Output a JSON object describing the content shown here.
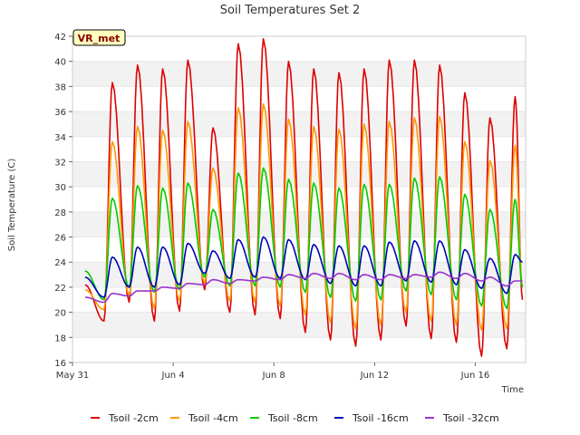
{
  "chart_data": {
    "type": "line",
    "title": "Soil Temperatures Set 2",
    "xlabel": "Time",
    "ylabel": "Soil Temperature (C)",
    "badge": "VR_met",
    "ylim": [
      16,
      42
    ],
    "yticks": [
      16,
      18,
      20,
      22,
      24,
      26,
      28,
      30,
      32,
      34,
      36,
      38,
      40,
      42
    ],
    "xlim": [
      "May 31",
      "Jun 18"
    ],
    "xticks": [
      "May 31",
      "Jun 4",
      "Jun 8",
      "Jun 12",
      "Jun 16"
    ],
    "grid": "horizontal bands",
    "legend_position": "bottom",
    "days": [
      "Jun 1",
      "Jun 2",
      "Jun 3",
      "Jun 4",
      "Jun 5",
      "Jun 6",
      "Jun 7",
      "Jun 8",
      "Jun 9",
      "Jun 10",
      "Jun 11",
      "Jun 12",
      "Jun 13",
      "Jun 14",
      "Jun 15",
      "Jun 16",
      "Jun 17"
    ],
    "series": [
      {
        "name": "Tsoil -2cm",
        "color": "#dd0000",
        "start": "May 31 12:00",
        "end": "Jun 17 21:00",
        "start_value": 22.2,
        "end_value": 21.0,
        "daily_max": [
          38.3,
          39.7,
          39.4,
          40.1,
          34.7,
          41.4,
          41.8,
          40.0,
          39.4,
          39.1,
          39.4,
          40.1,
          40.1,
          39.7,
          37.5,
          35.5,
          37.2
        ],
        "daily_min": [
          19.3,
          20.8,
          19.3,
          20.1,
          21.8,
          20.0,
          19.8,
          19.5,
          18.4,
          17.8,
          17.3,
          17.8,
          18.9,
          17.9,
          17.6,
          16.5,
          17.1
        ]
      },
      {
        "name": "Tsoil -4cm",
        "color": "#ff9900",
        "start": "May 31 12:00",
        "end": "Jun 17 21:00",
        "start_value": 21.8,
        "end_value": 22.0,
        "daily_max": [
          33.6,
          34.8,
          34.5,
          35.2,
          31.5,
          36.3,
          36.6,
          35.4,
          34.8,
          34.6,
          35.0,
          35.2,
          35.5,
          35.6,
          33.6,
          32.1,
          33.3
        ],
        "daily_min": [
          20.2,
          21.3,
          20.3,
          20.9,
          22.3,
          20.9,
          20.8,
          20.5,
          19.8,
          19.2,
          18.7,
          19.0,
          20.0,
          19.3,
          19.0,
          18.6,
          18.7
        ]
      },
      {
        "name": "Tsoil -8cm",
        "color": "#00cc00",
        "start": "May 31 12:00",
        "end": "Jun 17 21:00",
        "start_value": 23.3,
        "end_value": 22.0,
        "daily_max": [
          29.1,
          30.1,
          29.9,
          30.3,
          28.2,
          31.1,
          31.5,
          30.6,
          30.3,
          29.9,
          30.2,
          30.2,
          30.7,
          30.8,
          29.4,
          28.2,
          29.0
        ],
        "daily_min": [
          21.0,
          22.0,
          21.6,
          21.8,
          22.8,
          22.1,
          22.1,
          22.0,
          21.6,
          21.2,
          20.9,
          21.0,
          21.7,
          21.4,
          21.0,
          20.5,
          20.3
        ]
      },
      {
        "name": "Tsoil -16cm",
        "color": "#0000bb",
        "start": "May 31 12:00",
        "end": "Jun 17 21:00",
        "start_value": 22.8,
        "end_value": 24.0,
        "daily_max": [
          24.4,
          25.2,
          25.2,
          25.5,
          24.9,
          25.8,
          26.0,
          25.8,
          25.4,
          25.3,
          25.3,
          25.6,
          25.7,
          25.7,
          25.0,
          24.3,
          24.6
        ],
        "daily_min": [
          21.2,
          22.0,
          22.0,
          22.2,
          23.1,
          22.7,
          22.8,
          22.7,
          22.6,
          22.3,
          22.1,
          22.1,
          22.5,
          22.4,
          22.2,
          21.9,
          21.5
        ]
      },
      {
        "name": "Tsoil -32cm",
        "color": "#9933cc",
        "start": "May 31 12:00",
        "end": "Jun 17 21:00",
        "start_value": 21.2,
        "end_value": 22.5,
        "daily_max": [
          21.5,
          21.7,
          22.0,
          22.3,
          22.6,
          22.6,
          22.8,
          23.0,
          23.1,
          23.1,
          23.0,
          23.0,
          23.0,
          23.2,
          23.1,
          22.8,
          22.5
        ],
        "daily_min": [
          20.8,
          21.3,
          21.7,
          21.9,
          22.2,
          22.3,
          22.5,
          22.6,
          22.7,
          22.7,
          22.6,
          22.6,
          22.7,
          22.8,
          22.7,
          22.5,
          22.1
        ]
      }
    ]
  }
}
